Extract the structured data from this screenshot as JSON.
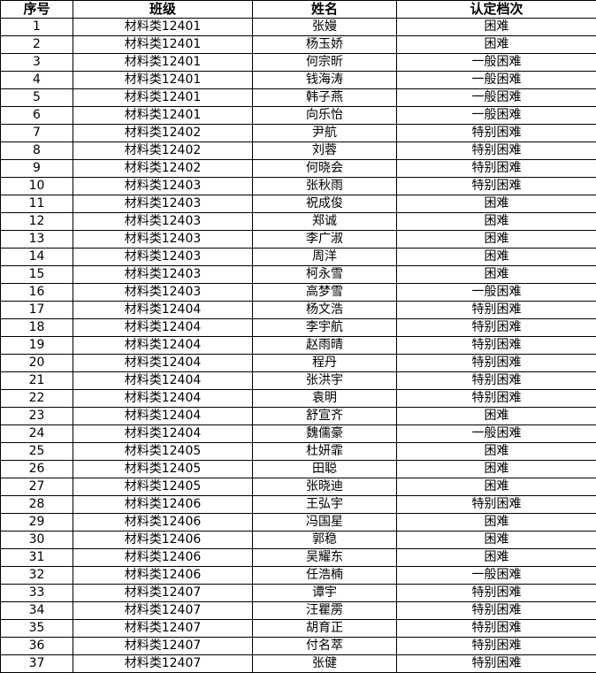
{
  "headers": [
    "序号",
    "班级",
    "姓名",
    "认定档次"
  ],
  "rows": [
    [
      "1",
      "材料类12401",
      "张嫚",
      "困难"
    ],
    [
      "2",
      "材料类12401",
      "杨玉娇",
      "困难"
    ],
    [
      "3",
      "材料类12401",
      "何宗昕",
      "一般困难"
    ],
    [
      "4",
      "材料类12401",
      "钱海涛",
      "一般困难"
    ],
    [
      "5",
      "材料类12401",
      "韩子燕",
      "一般困难"
    ],
    [
      "6",
      "材料类12401",
      "向乐怡",
      "一般困难"
    ],
    [
      "7",
      "材料类12402",
      "尹航",
      "特别困难"
    ],
    [
      "8",
      "材料类12402",
      "刘蓉",
      "特别困难"
    ],
    [
      "9",
      "材料类12402",
      "何晓会",
      "特别困难"
    ],
    [
      "10",
      "材料类12403",
      "张秋雨",
      "特别困难"
    ],
    [
      "11",
      "材料类12403",
      "祝成俊",
      "困难"
    ],
    [
      "12",
      "材料类12403",
      "郑诚",
      "困难"
    ],
    [
      "13",
      "材料类12403",
      "李广淑",
      "困难"
    ],
    [
      "14",
      "材料类12403",
      "周洋",
      "困难"
    ],
    [
      "15",
      "材料类12403",
      "柯永雪",
      "困难"
    ],
    [
      "16",
      "材料类12403",
      "高梦雪",
      "一般困难"
    ],
    [
      "17",
      "材料类12404",
      "杨文浩",
      "特别困难"
    ],
    [
      "18",
      "材料类12404",
      "李宇航",
      "特别困难"
    ],
    [
      "19",
      "材料类12404",
      "赵雨晴",
      "特别困难"
    ],
    [
      "20",
      "材料类12404",
      "程丹",
      "特别困难"
    ],
    [
      "21",
      "材料类12404",
      "张洪宇",
      "特别困难"
    ],
    [
      "22",
      "材料类12404",
      "袁明",
      "特别困难"
    ],
    [
      "23",
      "材料类12404",
      "舒宣齐",
      "困难"
    ],
    [
      "24",
      "材料类12404",
      "魏儒豪",
      "一般困难"
    ],
    [
      "25",
      "材料类12405",
      "杜妍霏",
      "困难"
    ],
    [
      "26",
      "材料类12405",
      "田聪",
      "困难"
    ],
    [
      "27",
      "材料类12405",
      "张晓迪",
      "困难"
    ],
    [
      "28",
      "材料类12406",
      "王弘宇",
      "特别困难"
    ],
    [
      "29",
      "材料类12406",
      "冯国星",
      "困难"
    ],
    [
      "30",
      "材料类12406",
      "郭稳",
      "困难"
    ],
    [
      "31",
      "材料类12406",
      "吴耀东",
      "困难"
    ],
    [
      "32",
      "材料类12406",
      "任浩楠",
      "一般困难"
    ],
    [
      "33",
      "材料类12407",
      "谭宇",
      "特别困难"
    ],
    [
      "34",
      "材料类12407",
      "汪瞿雳",
      "特别困难"
    ],
    [
      "35",
      "材料类12407",
      "胡育正",
      "特别困难"
    ],
    [
      "36",
      "材料类12407",
      "付名萃",
      "特别困难"
    ],
    [
      "37",
      "材料类12407",
      "张健",
      "特别困难"
    ]
  ]
}
